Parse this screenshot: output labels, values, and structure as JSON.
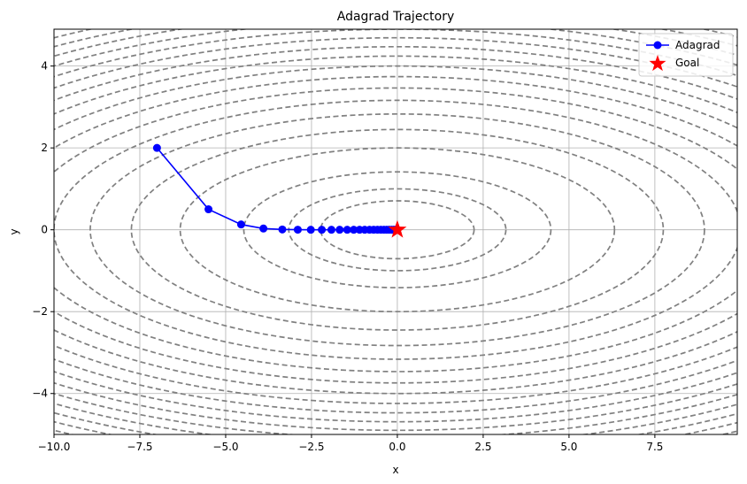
{
  "chart_data": {
    "type": "line",
    "title": "Adagrad Trajectory",
    "xlabel": "x",
    "ylabel": "y",
    "xlim": [
      -10,
      9.9
    ],
    "ylim": [
      -5,
      4.9
    ],
    "xticks": [
      -10.0,
      -7.5,
      -5.0,
      -2.5,
      0.0,
      2.5,
      5.0,
      7.5
    ],
    "xtick_labels": [
      "−10.0",
      "−7.5",
      "−5.0",
      "−2.5",
      "0.0",
      "2.5",
      "5.0",
      "7.5"
    ],
    "yticks": [
      -4,
      -2,
      0,
      2,
      4
    ],
    "ytick_labels": [
      "−4",
      "−2",
      "0",
      "2",
      "4"
    ],
    "grid": true,
    "legend_position": "top-right",
    "contour": {
      "function": "x^2 + 10*y^2",
      "levels": [
        5,
        10,
        20,
        40,
        60,
        80,
        100,
        120,
        140,
        160,
        180,
        200,
        220,
        240,
        260,
        280,
        300,
        320,
        340,
        360,
        380,
        400
      ],
      "style": "dashed",
      "color": "#808080"
    },
    "series": [
      {
        "name": "Adagrad",
        "color": "#0000ff",
        "marker": "circle",
        "x": [
          -7.0,
          -5.5,
          -4.55,
          -3.9,
          -3.35,
          -2.9,
          -2.52,
          -2.2,
          -1.92,
          -1.68,
          -1.46,
          -1.27,
          -1.1,
          -0.95,
          -0.81,
          -0.69,
          -0.58,
          -0.48,
          -0.39,
          -0.31,
          -0.24,
          -0.17,
          -0.11,
          -0.06,
          -0.02
        ],
        "y": [
          2.0,
          0.5,
          0.13,
          0.03,
          0.008,
          0.002,
          0.0005,
          0.0001,
          0,
          0,
          0,
          0,
          0,
          0,
          0,
          0,
          0,
          0,
          0,
          0,
          0,
          0,
          0,
          0,
          0
        ]
      },
      {
        "name": "Goal",
        "color": "#ff0000",
        "marker": "star",
        "x": [
          0
        ],
        "y": [
          0
        ]
      }
    ]
  }
}
